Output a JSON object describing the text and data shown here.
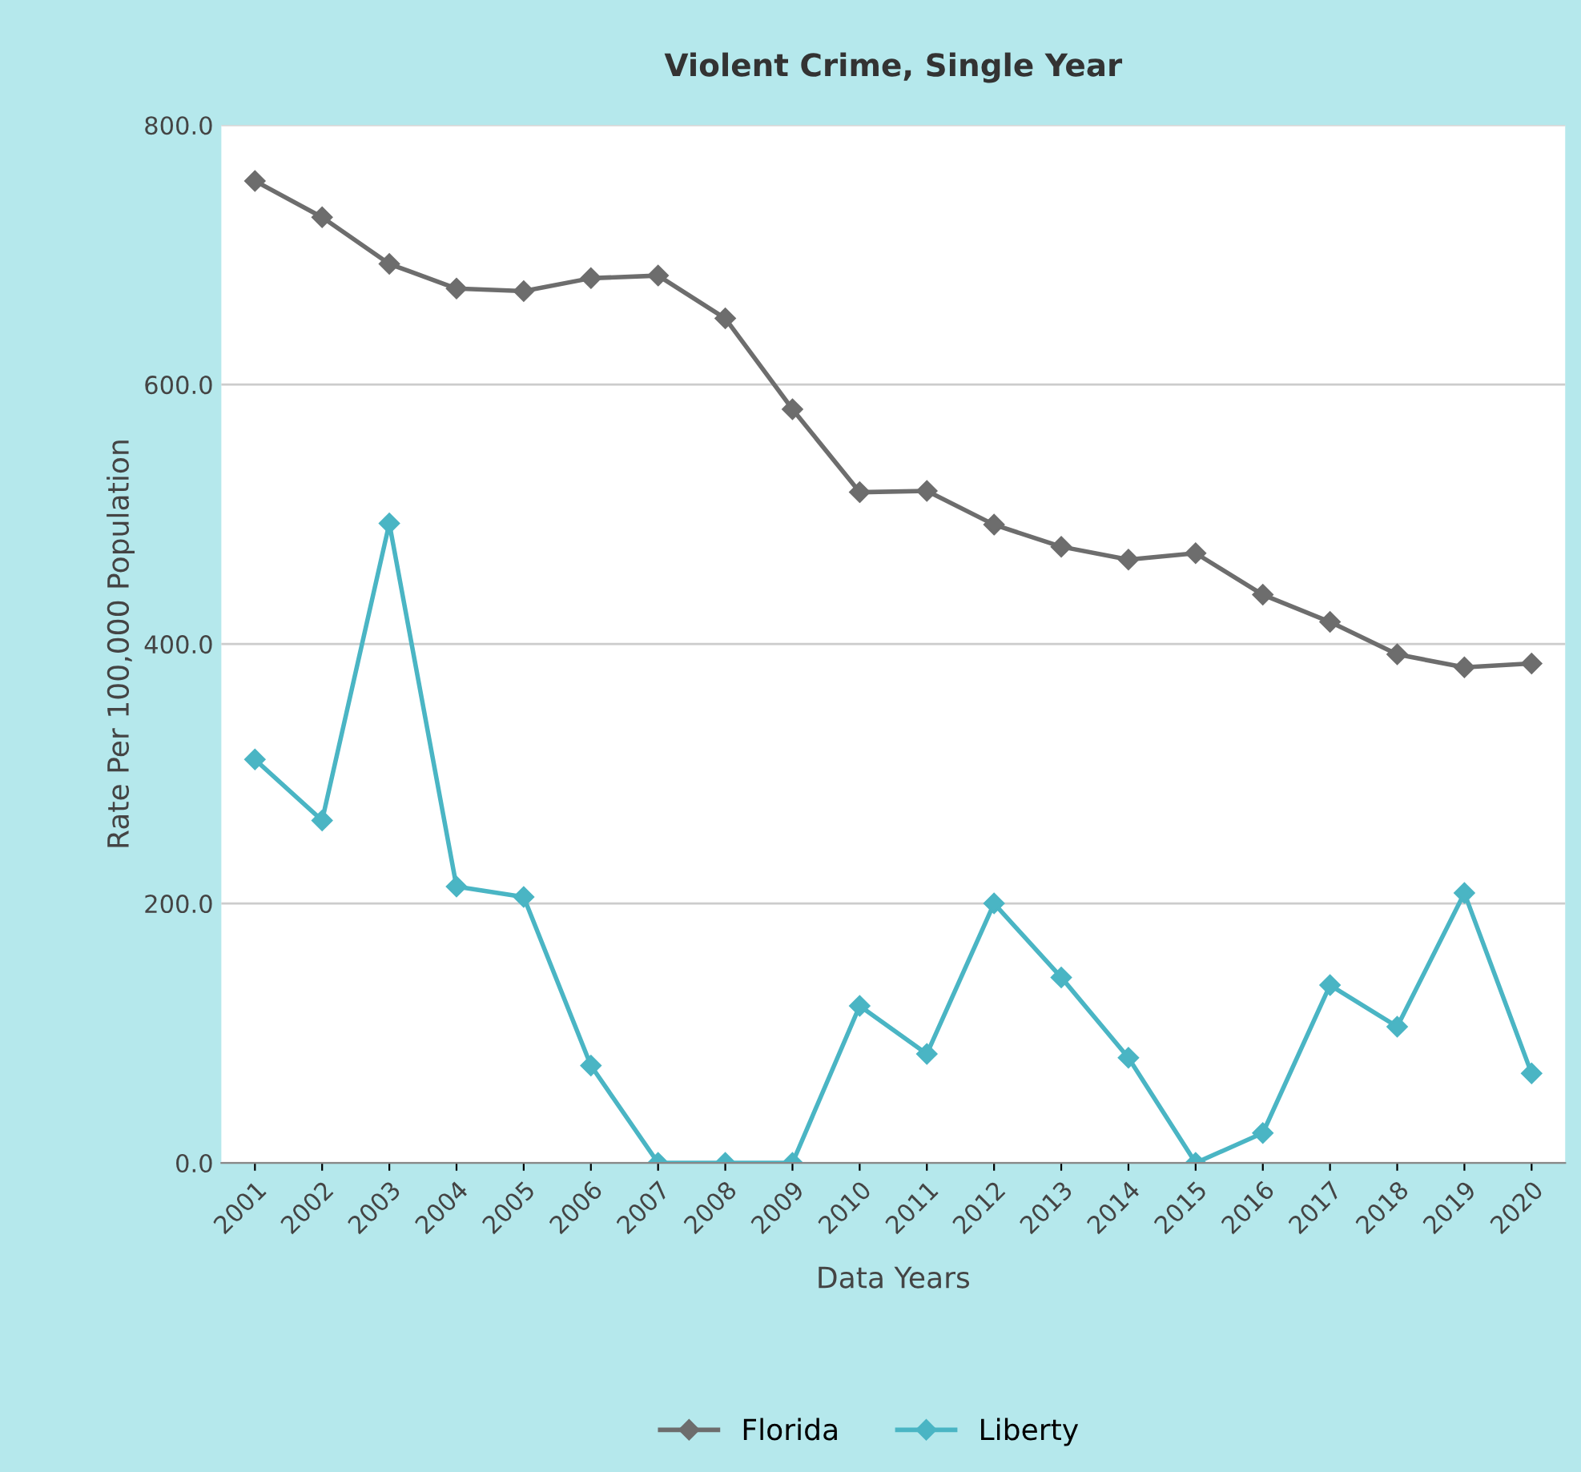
{
  "chart_data": {
    "type": "line",
    "title": "Violent Crime, Single Year",
    "xlabel": "Data Years",
    "ylabel": "Rate Per 100,000 Population",
    "categories": [
      "2001",
      "2002",
      "2003",
      "2004",
      "2005",
      "2006",
      "2007",
      "2008",
      "2009",
      "2010",
      "2011",
      "2012",
      "2013",
      "2014",
      "2015",
      "2016",
      "2017",
      "2018",
      "2019",
      "2020"
    ],
    "series": [
      {
        "name": "Florida",
        "color": "#6d6d6d",
        "values": [
          757,
          729,
          693,
          674,
          672,
          682,
          684,
          651,
          581,
          517,
          518,
          492,
          475,
          465,
          470,
          438,
          417,
          392,
          382,
          385
        ]
      },
      {
        "name": "Liberty",
        "color": "#4ab5c4",
        "values": [
          311,
          264,
          493,
          213,
          205,
          75,
          0,
          0,
          0,
          121,
          84,
          200,
          143,
          81,
          0,
          23,
          137,
          105,
          208,
          69
        ]
      }
    ],
    "ylim": [
      0,
      800
    ],
    "yticks": [
      {
        "value": 0,
        "label": "0.0"
      },
      {
        "value": 200,
        "label": "200.0"
      },
      {
        "value": 400,
        "label": "400.0"
      },
      {
        "value": 600,
        "label": "600.0"
      },
      {
        "value": 800,
        "label": "800.0"
      }
    ],
    "grid": "y",
    "legend": "bottom",
    "marker": "diamond",
    "line_style": "solid"
  }
}
